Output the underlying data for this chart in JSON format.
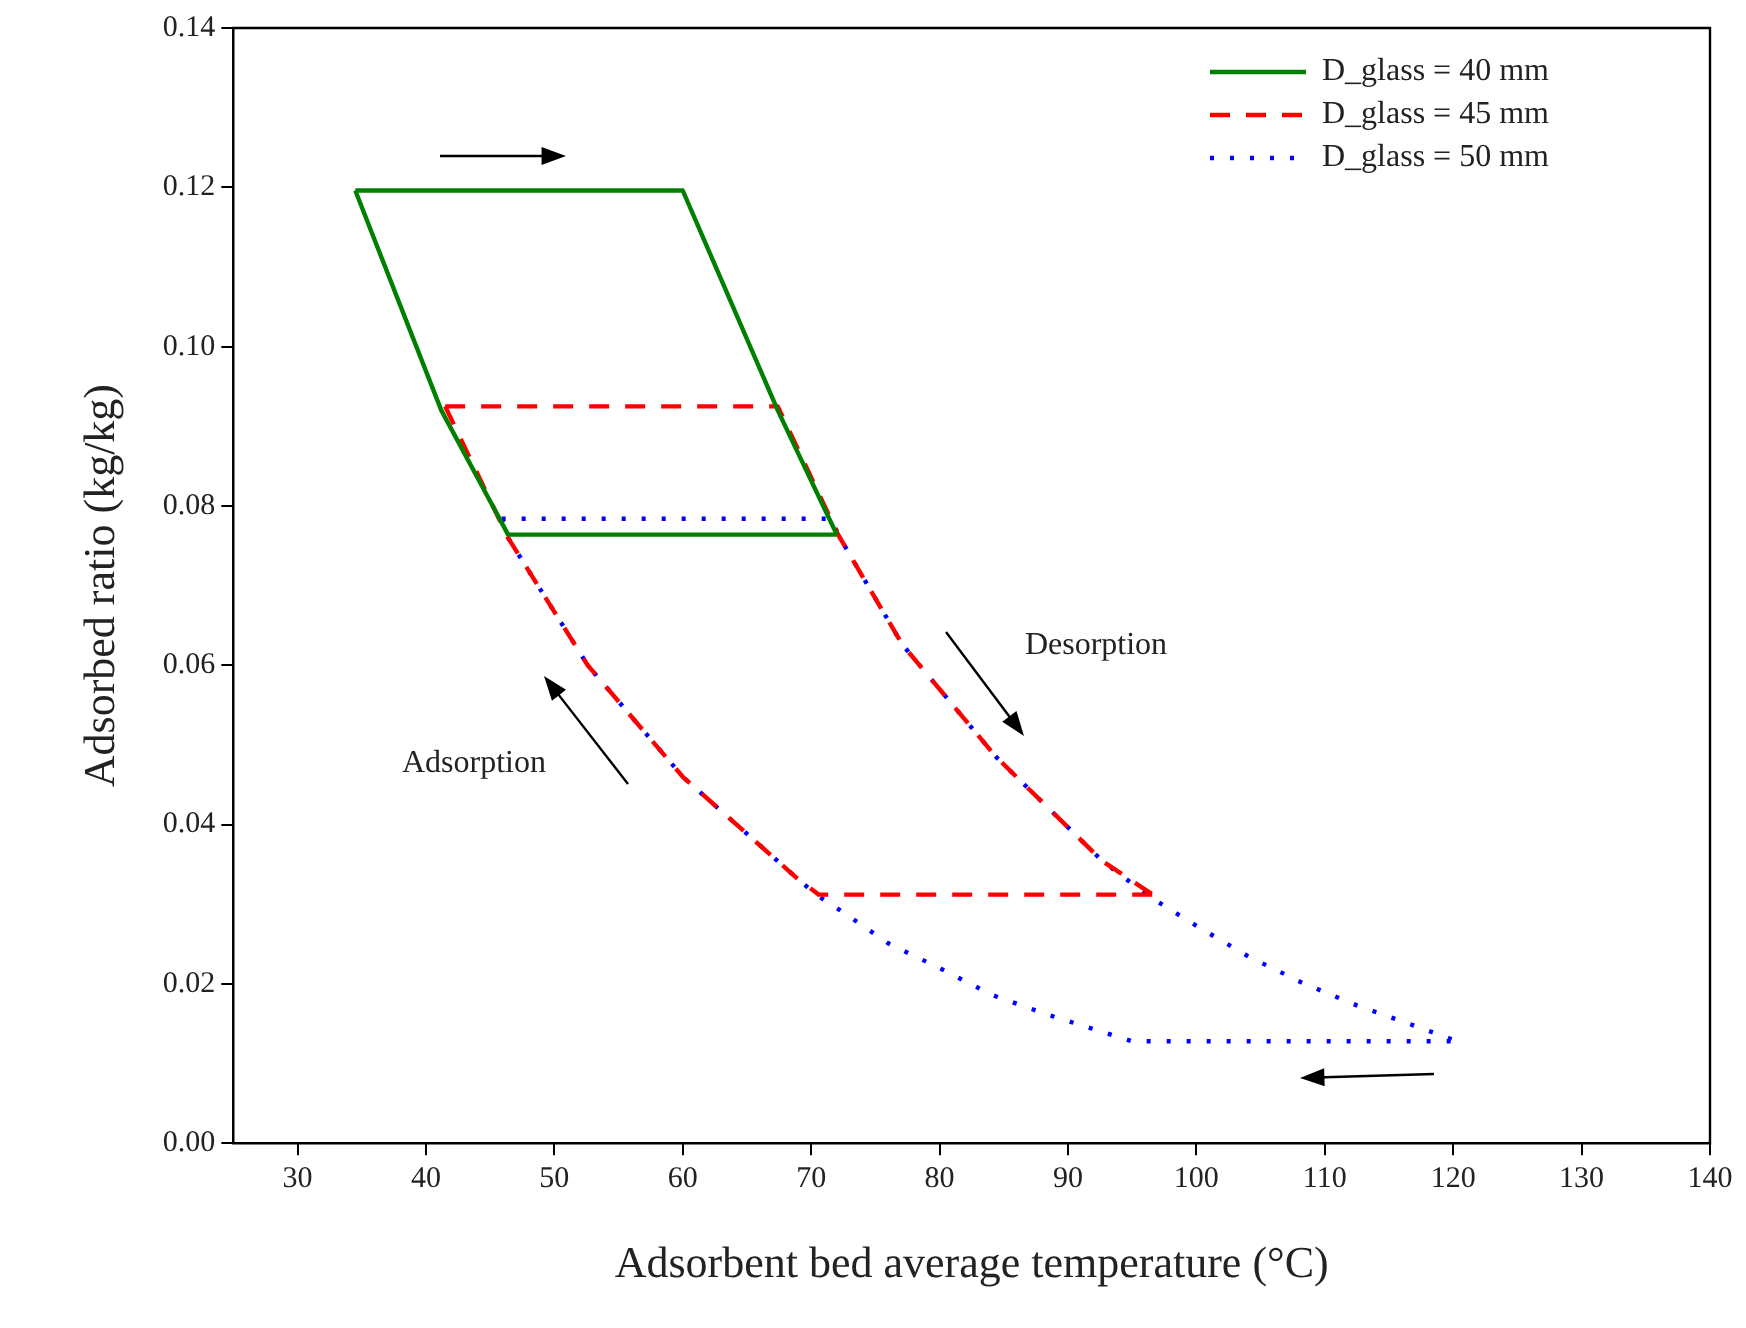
{
  "chart_data": {
    "type": "line",
    "xlabel": "Adsorbent bed average temperature (°C)",
    "ylabel": "Adsorbed ratio (kg/kg)",
    "xlim": [
      25,
      140
    ],
    "xticks": [
      30,
      40,
      50,
      60,
      70,
      80,
      90,
      100,
      110,
      120,
      130,
      140
    ],
    "ylim": [
      0,
      0.14
    ],
    "yticks": [
      {
        "value": 0,
        "label": "0.00"
      },
      {
        "value": 0.02,
        "label": "0.02"
      },
      {
        "value": 0.04,
        "label": "0.04"
      },
      {
        "value": 0.06,
        "label": "0.06"
      },
      {
        "value": 0.08,
        "label": "0.08"
      },
      {
        "value": 0.1,
        "label": "0.10"
      },
      {
        "value": 0.12,
        "label": "0.12"
      },
      {
        "value": 0.14,
        "label": "0.14"
      }
    ],
    "grid": false,
    "legend": "top right",
    "marker": "none",
    "series": [
      {
        "name": "D_glass = 40 mm",
        "color": "#008000",
        "line_style": "solid",
        "x": [
          34.5,
          60,
          67.4,
          72
        ],
        "values": [
          0.1196,
          0.1196,
          0.092,
          0.0764
        ]
      },
      {
        "color": "#008000",
        "line_style": "solid",
        "x": [
          34.5,
          41.2,
          46.4,
          72
        ],
        "values": [
          0.1196,
          0.092,
          0.0764,
          0.0764
        ]
      },
      {
        "name": "D_glass = 45 mm",
        "color": "#ff0000",
        "line_style": "dashed",
        "x": [
          41.5,
          67.4,
          72.1,
          77.1,
          84.4,
          92.7,
          96.6
        ],
        "values": [
          0.0925,
          0.0925,
          0.0764,
          0.0626,
          0.0485,
          0.0354,
          0.0312
        ]
      },
      {
        "color": "#ff0000",
        "line_style": "dashed",
        "x": [
          41.5,
          46.4,
          52.6,
          60,
          68.8,
          70.6,
          96.6
        ],
        "values": [
          0.0925,
          0.076,
          0.06,
          0.046,
          0.0334,
          0.0312,
          0.0312
        ]
      },
      {
        "name": "D_glass = 50 mm",
        "color": "#0000ff",
        "line_style": "dotted",
        "x": [
          45.9,
          71.6,
          72.1,
          77.1,
          84.4,
          92.7,
          96.3,
          100.2,
          104.1,
          108.3,
          112.5,
          116.9,
          120.3
        ],
        "values": [
          0.0784,
          0.0784,
          0.0764,
          0.0626,
          0.0485,
          0.0354,
          0.031,
          0.0271,
          0.0234,
          0.0201,
          0.0173,
          0.0148,
          0.0128
        ]
      },
      {
        "color": "#0000ff",
        "line_style": "dotted",
        "x": [
          45.9,
          46.4,
          52.6,
          60,
          68.8,
          70.4,
          72.3,
          76,
          80.1,
          84.1,
          88.5,
          95,
          120.3
        ],
        "values": [
          0.0784,
          0.076,
          0.06,
          0.046,
          0.0334,
          0.0312,
          0.0292,
          0.0251,
          0.0219,
          0.0186,
          0.0161,
          0.0128,
          0.0128
        ]
      }
    ],
    "annotations": [
      "Desorption",
      "Adsorption"
    ]
  }
}
